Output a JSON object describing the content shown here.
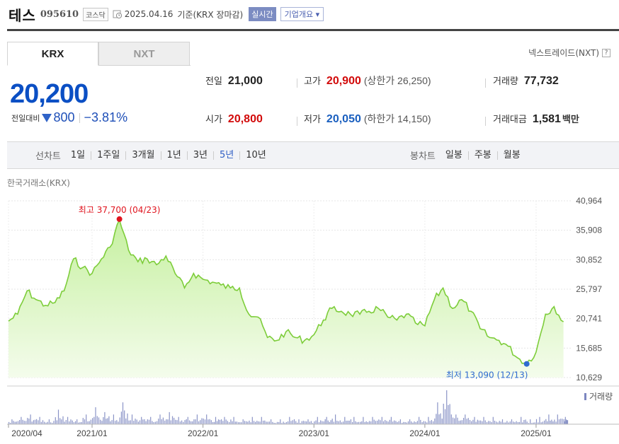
{
  "header": {
    "name": "테스",
    "code": "095610",
    "market": "코스닥",
    "date": "2025.04.16",
    "basis": "기준(KRX 장마감)",
    "realtime_label": "실시간",
    "company_info_label": "기업개요 ▾"
  },
  "exchange_tabs": [
    {
      "label": "KRX",
      "selected": true
    },
    {
      "label": "NXT",
      "selected": false
    }
  ],
  "nxt_link": "넥스트레이드(NXT)",
  "nxt_help": "?",
  "price": {
    "current": "20,200",
    "change_label": "전일대비",
    "change": "800",
    "change_pct": "−3.81%",
    "direction": "down"
  },
  "stats": {
    "prev_close": {
      "label": "전일",
      "value": "21,000"
    },
    "high": {
      "label": "고가",
      "value": "20,900",
      "sub": "(상한가 26,250)"
    },
    "volume": {
      "label": "거래량",
      "value": "77,732"
    },
    "open": {
      "label": "시가",
      "value": "20,800"
    },
    "low": {
      "label": "저가",
      "value": "20,050",
      "sub": "(하한가 14,150)"
    },
    "amount": {
      "label": "거래대금",
      "value": "1,581",
      "unit": "백만"
    }
  },
  "line_chart": {
    "label": "선차트",
    "periods": [
      "1일",
      "1주일",
      "3개월",
      "1년",
      "3년",
      "5년",
      "10년"
    ],
    "selected": "5년"
  },
  "candle_chart": {
    "label": "봉차트",
    "periods": [
      "일봉",
      "주봉",
      "월봉"
    ]
  },
  "source_label": "한국거래소(KRX)",
  "colors": {
    "line": "#7dcd3a",
    "fill_top": "#c6f0a0",
    "fill_bottom": "#f4fcec",
    "high_dot": "#e0141e",
    "low_dot": "#2f6bd0",
    "down": "#1e4fb8",
    "up": "#d20a0a"
  },
  "chart_data": {
    "type": "area",
    "y_ticks": [
      "40,964",
      "35,908",
      "30,852",
      "25,797",
      "20,741",
      "15,685",
      "10,629"
    ],
    "ylim": [
      10629,
      40964
    ],
    "x_ticks": [
      "2020/04",
      "2021/01",
      "2022/01",
      "2023/01",
      "2024/01",
      "2025/01"
    ],
    "x_tick_dates": [
      "2020-04",
      "2021-01",
      "2022-01",
      "2023-01",
      "2024-01",
      "2025-01"
    ],
    "high_annotation": "최고 37,700 (04/23)",
    "low_annotation": "최저 13,090 (12/13)",
    "volume_label": "거래량",
    "series": [
      {
        "x": [
          "2020-04",
          "2020-05",
          "2020-06",
          "2020-07",
          "2020-08",
          "2020-09",
          "2020-10",
          "2020-11",
          "2020-12",
          "2021-01",
          "2021-02",
          "2021-03",
          "2021-04",
          "2021-05",
          "2021-06",
          "2021-07",
          "2021-08",
          "2021-09",
          "2021-10",
          "2021-11",
          "2021-12",
          "2022-01",
          "2022-02",
          "2022-03",
          "2022-04",
          "2022-05",
          "2022-06",
          "2022-07",
          "2022-08",
          "2022-09",
          "2022-10",
          "2022-11",
          "2022-12",
          "2023-01",
          "2023-02",
          "2023-03",
          "2023-04",
          "2023-05",
          "2023-06",
          "2023-07",
          "2023-08",
          "2023-09",
          "2023-10",
          "2023-11",
          "2023-12",
          "2024-01",
          "2024-02",
          "2024-03",
          "2024-04",
          "2024-05",
          "2024-06",
          "2024-07",
          "2024-08",
          "2024-09",
          "2024-10",
          "2024-11",
          "2024-12",
          "2025-01",
          "2025-02",
          "2025-03",
          "2025-04"
        ],
        "values": [
          20300,
          21500,
          25500,
          24000,
          23000,
          23500,
          25500,
          31000,
          29500,
          28500,
          31000,
          33000,
          37700,
          32500,
          30500,
          31000,
          30000,
          31500,
          28500,
          26000,
          28500,
          27500,
          27000,
          26500,
          26000,
          26000,
          21500,
          21000,
          17500,
          17000,
          18500,
          17500,
          17000,
          18000,
          20500,
          22500,
          22000,
          21500,
          21500,
          22000,
          22500,
          21000,
          20500,
          21500,
          20000,
          19500,
          24000,
          26000,
          22500,
          24000,
          22000,
          19000,
          17500,
          17000,
          16000,
          14000,
          13090,
          15000,
          21500,
          22800,
          20200
        ]
      }
    ],
    "volume_series": [
      2,
      3,
      4,
      3,
      2,
      6,
      3,
      2,
      4,
      7,
      5,
      4,
      9,
      4,
      3,
      3,
      4,
      5,
      3,
      3,
      4,
      4,
      3,
      3,
      3,
      2,
      3,
      3,
      2,
      2,
      3,
      2,
      2,
      3,
      3,
      4,
      3,
      3,
      3,
      3,
      3,
      3,
      2,
      2,
      3,
      3,
      9,
      14,
      4,
      4,
      3,
      3,
      3,
      2,
      2,
      3,
      2,
      3,
      4,
      4,
      3
    ]
  }
}
